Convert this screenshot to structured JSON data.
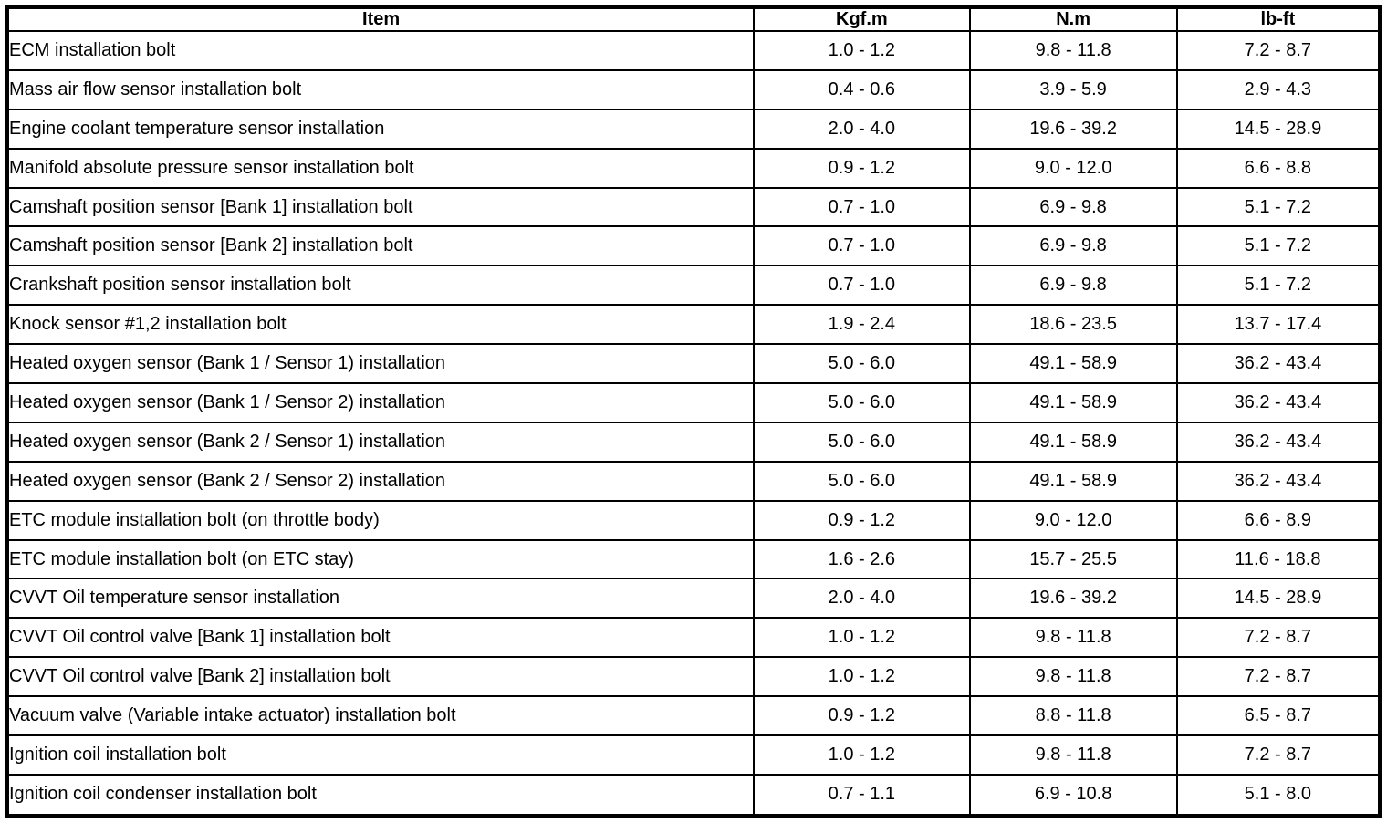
{
  "table": {
    "columns": [
      {
        "label": "Item"
      },
      {
        "label": "Kgf.m"
      },
      {
        "label": "N.m"
      },
      {
        "label": "lb-ft"
      }
    ],
    "rows": [
      {
        "item": "ECM installation bolt",
        "kgf_m": "1.0 - 1.2",
        "n_m": "9.8 - 11.8",
        "lb_ft": "7.2 - 8.7"
      },
      {
        "item": "Mass air flow sensor installation bolt",
        "kgf_m": "0.4 - 0.6",
        "n_m": "3.9 - 5.9",
        "lb_ft": "2.9 - 4.3"
      },
      {
        "item": "Engine coolant temperature sensor installation",
        "kgf_m": "2.0 - 4.0",
        "n_m": "19.6 - 39.2",
        "lb_ft": "14.5 - 28.9"
      },
      {
        "item": "Manifold absolute pressure sensor installation bolt",
        "kgf_m": "0.9 - 1.2",
        "n_m": "9.0 - 12.0",
        "lb_ft": "6.6 - 8.8"
      },
      {
        "item": "Camshaft position sensor [Bank 1] installation bolt",
        "kgf_m": "0.7 - 1.0",
        "n_m": "6.9 - 9.8",
        "lb_ft": "5.1 - 7.2"
      },
      {
        "item": "Camshaft position sensor [Bank 2] installation bolt",
        "kgf_m": "0.7 - 1.0",
        "n_m": "6.9 - 9.8",
        "lb_ft": "5.1 - 7.2"
      },
      {
        "item": "Crankshaft position sensor installation bolt",
        "kgf_m": "0.7 - 1.0",
        "n_m": "6.9 - 9.8",
        "lb_ft": "5.1 - 7.2"
      },
      {
        "item": "Knock sensor #1,2 installation bolt",
        "kgf_m": "1.9 - 2.4",
        "n_m": "18.6 - 23.5",
        "lb_ft": "13.7 - 17.4"
      },
      {
        "item": "Heated oxygen sensor (Bank 1 / Sensor 1) installation",
        "kgf_m": "5.0 - 6.0",
        "n_m": "49.1 - 58.9",
        "lb_ft": "36.2 - 43.4"
      },
      {
        "item": "Heated oxygen sensor (Bank 1 / Sensor 2) installation",
        "kgf_m": "5.0 - 6.0",
        "n_m": "49.1 - 58.9",
        "lb_ft": "36.2 - 43.4"
      },
      {
        "item": "Heated oxygen sensor (Bank 2 / Sensor 1) installation",
        "kgf_m": "5.0 - 6.0",
        "n_m": "49.1 - 58.9",
        "lb_ft": "36.2 - 43.4"
      },
      {
        "item": "Heated oxygen sensor (Bank 2 / Sensor 2) installation",
        "kgf_m": "5.0 - 6.0",
        "n_m": "49.1 - 58.9",
        "lb_ft": "36.2 - 43.4"
      },
      {
        "item": "ETC module installation bolt (on throttle body)",
        "kgf_m": "0.9 - 1.2",
        "n_m": "9.0 - 12.0",
        "lb_ft": "6.6 - 8.9"
      },
      {
        "item": "ETC module installation bolt (on ETC stay)",
        "kgf_m": "1.6 - 2.6",
        "n_m": "15.7 - 25.5",
        "lb_ft": "11.6 - 18.8"
      },
      {
        "item": "CVVT Oil temperature sensor installation",
        "kgf_m": "2.0 - 4.0",
        "n_m": "19.6 - 39.2",
        "lb_ft": "14.5 - 28.9"
      },
      {
        "item": "CVVT Oil control valve [Bank 1] installation bolt",
        "kgf_m": "1.0 - 1.2",
        "n_m": "9.8 - 11.8",
        "lb_ft": "7.2 - 8.7"
      },
      {
        "item": "CVVT Oil control valve [Bank 2] installation bolt",
        "kgf_m": "1.0 - 1.2",
        "n_m": "9.8 - 11.8",
        "lb_ft": "7.2 - 8.7"
      },
      {
        "item": "Vacuum valve (Variable intake actuator) installation bolt",
        "kgf_m": "0.9 - 1.2",
        "n_m": "8.8 - 11.8",
        "lb_ft": "6.5 - 8.7"
      },
      {
        "item": "Ignition coil installation bolt",
        "kgf_m": "1.0 - 1.2",
        "n_m": "9.8 - 11.8",
        "lb_ft": "7.2 - 8.7"
      },
      {
        "item": "Ignition coil condenser installation bolt",
        "kgf_m": "0.7 - 1.1",
        "n_m": "6.9 - 10.8",
        "lb_ft": "5.1 - 8.0"
      }
    ]
  }
}
